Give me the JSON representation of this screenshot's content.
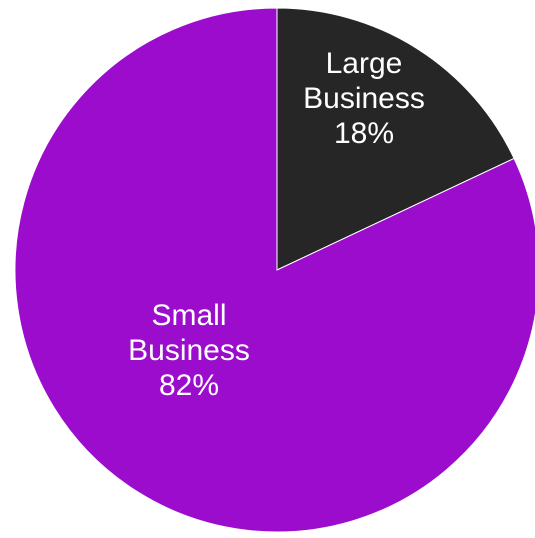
{
  "chart_data": {
    "type": "pie",
    "title": "",
    "slices": [
      {
        "name": "Large Business",
        "label_lines": [
          "Large",
          "Business",
          "18%"
        ],
        "value": 18,
        "color": "#262626"
      },
      {
        "name": "Small Business",
        "label_lines": [
          "Small",
          "Business",
          "82%"
        ],
        "value": 82,
        "color": "#9b0ccc"
      }
    ],
    "start_angle_degrees": 0,
    "direction": "clockwise",
    "separator_color": "#ffffff",
    "legend": "none"
  }
}
